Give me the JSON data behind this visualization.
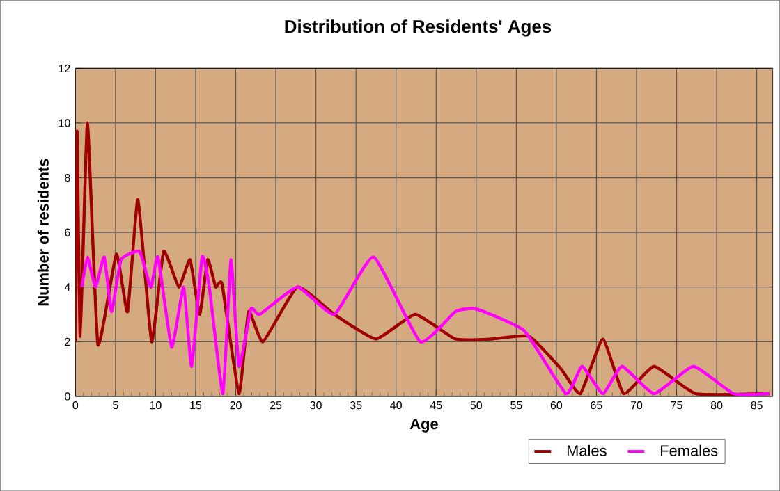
{
  "chart_data": {
    "type": "line",
    "title": "Distribution of Residents' Ages",
    "xlabel": "Age",
    "ylabel": "Number of residents",
    "xlim": [
      0,
      87
    ],
    "xticks": [
      0,
      5,
      10,
      15,
      20,
      25,
      30,
      35,
      40,
      45,
      50,
      55,
      60,
      65,
      70,
      75,
      80,
      85
    ],
    "ylim": [
      0,
      12
    ],
    "yticks": [
      0,
      2,
      4,
      6,
      8,
      10,
      12
    ],
    "grid": true,
    "legend": "bottom right",
    "series": [
      {
        "name": "Males",
        "color": "#a00000",
        "x": [
          0,
          0.2,
          0.6,
          1.5,
          2.8,
          5.1,
          6.5,
          7.8,
          9.5,
          11,
          12.9,
          14.3,
          15.5,
          16.5,
          17.5,
          18.3,
          20.4,
          21.6,
          23.4,
          27.7,
          32.3,
          37.5,
          42.4,
          47.4,
          52,
          56.6,
          60.6,
          63,
          65.8,
          68.4,
          72.2,
          77.4,
          86.6
        ],
        "values": [
          2.0,
          9.7,
          2.2,
          10,
          1.9,
          5.2,
          3.1,
          7.2,
          2.0,
          5.3,
          4.0,
          5.0,
          3.0,
          5.0,
          4.0,
          4.1,
          0.1,
          3.1,
          2.0,
          4.0,
          3.0,
          2.1,
          3.0,
          2.1,
          2.1,
          2.2,
          1.0,
          0.1,
          2.1,
          0.1,
          1.1,
          0.1,
          0.1
        ]
      },
      {
        "name": "Females",
        "color": "#ff00ff",
        "x": [
          0.8,
          1.5,
          2.5,
          3.6,
          4.5,
          5.7,
          8,
          9.4,
          10.3,
          12,
          13.5,
          14.5,
          15.8,
          16.7,
          18.4,
          19.4,
          20.4,
          21.9,
          23,
          27.7,
          32.3,
          37.2,
          43,
          47.4,
          50,
          56,
          61.2,
          63.2,
          65.8,
          68.2,
          72.2,
          77.1,
          82.1,
          86.6
        ],
        "values": [
          4.0,
          5.1,
          4.0,
          5.1,
          3.1,
          5.0,
          5.3,
          4.0,
          5.1,
          1.8,
          4.0,
          1.1,
          5.1,
          4.0,
          0.1,
          5.0,
          1.1,
          3.2,
          3.0,
          4.0,
          3.0,
          5.1,
          2.0,
          3.1,
          3.2,
          2.4,
          0.1,
          1.1,
          0.1,
          1.1,
          0.1,
          1.1,
          0.1,
          0.1
        ]
      }
    ]
  }
}
